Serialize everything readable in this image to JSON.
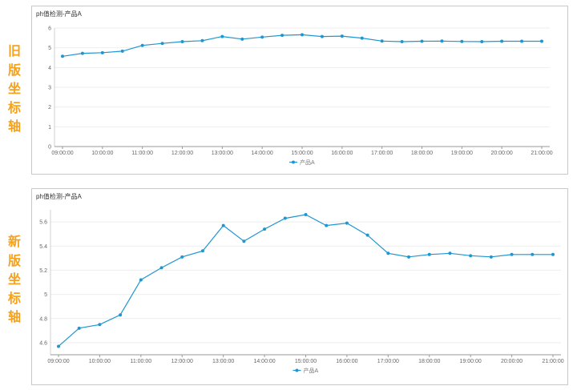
{
  "side_labels": {
    "old": "旧\n版\n坐\n标\n轴",
    "new": "新\n版\n坐\n标\n轴"
  },
  "colors": {
    "series": "#1f96d1",
    "accent_label": "#f5a11c"
  },
  "chart_data": [
    {
      "type": "line",
      "title": "ph值检测-产品A",
      "x": [
        "09:00:00",
        "09:30:00",
        "10:00:00",
        "10:30:00",
        "11:00:00",
        "11:30:00",
        "12:00:00",
        "12:30:00",
        "13:00:00",
        "13:30:00",
        "14:00:00",
        "14:30:00",
        "15:00:00",
        "15:30:00",
        "16:00:00",
        "16:30:00",
        "17:00:00",
        "17:30:00",
        "18:00:00",
        "18:30:00",
        "19:00:00",
        "19:30:00",
        "20:00:00",
        "20:30:00",
        "21:00:00"
      ],
      "x_tick_labels": [
        "09:00:00",
        "10:00:00",
        "11:00:00",
        "12:00:00",
        "13:00:00",
        "14:00:00",
        "15:00:00",
        "16:00:00",
        "17:00:00",
        "18:00:00",
        "19:00:00",
        "20:00:00",
        "21:00:00"
      ],
      "series": [
        {
          "name": "产品A",
          "values": [
            4.57,
            4.72,
            4.75,
            4.83,
            5.12,
            5.22,
            5.31,
            5.36,
            5.57,
            5.44,
            5.54,
            5.63,
            5.66,
            5.57,
            5.59,
            5.49,
            5.34,
            5.31,
            5.33,
            5.34,
            5.32,
            5.31,
            5.33,
            5.33,
            5.33
          ]
        }
      ],
      "ylim": [
        0,
        6
      ],
      "y_ticks": [
        "0",
        "1",
        "2",
        "3",
        "4",
        "5",
        "6"
      ],
      "grid": true,
      "legend": "bottom-center"
    },
    {
      "type": "line",
      "title": "ph值检测-产品A",
      "x": [
        "09:00:00",
        "09:30:00",
        "10:00:00",
        "10:30:00",
        "11:00:00",
        "11:30:00",
        "12:00:00",
        "12:30:00",
        "13:00:00",
        "13:30:00",
        "14:00:00",
        "14:30:00",
        "15:00:00",
        "15:30:00",
        "16:00:00",
        "16:30:00",
        "17:00:00",
        "17:30:00",
        "18:00:00",
        "18:30:00",
        "19:00:00",
        "19:30:00",
        "20:00:00",
        "20:30:00",
        "21:00:00"
      ],
      "x_tick_labels": [
        "09:00:00",
        "10:00:00",
        "11:00:00",
        "12:00:00",
        "13:00:00",
        "14:00:00",
        "15:00:00",
        "16:00:00",
        "17:00:00",
        "18:00:00",
        "19:00:00",
        "20:00:00",
        "21:00:00"
      ],
      "series": [
        {
          "name": "产品A",
          "values": [
            4.57,
            4.72,
            4.75,
            4.83,
            5.12,
            5.22,
            5.31,
            5.36,
            5.57,
            5.44,
            5.54,
            5.63,
            5.66,
            5.57,
            5.59,
            5.49,
            5.34,
            5.31,
            5.33,
            5.34,
            5.32,
            5.31,
            5.33,
            5.33,
            5.33
          ]
        }
      ],
      "ylim": [
        4.5,
        5.7
      ],
      "y_ticks": [
        "4.6",
        "4.8",
        "5",
        "5.2",
        "5.4",
        "5.6"
      ],
      "grid": true,
      "legend": "bottom-center"
    }
  ]
}
